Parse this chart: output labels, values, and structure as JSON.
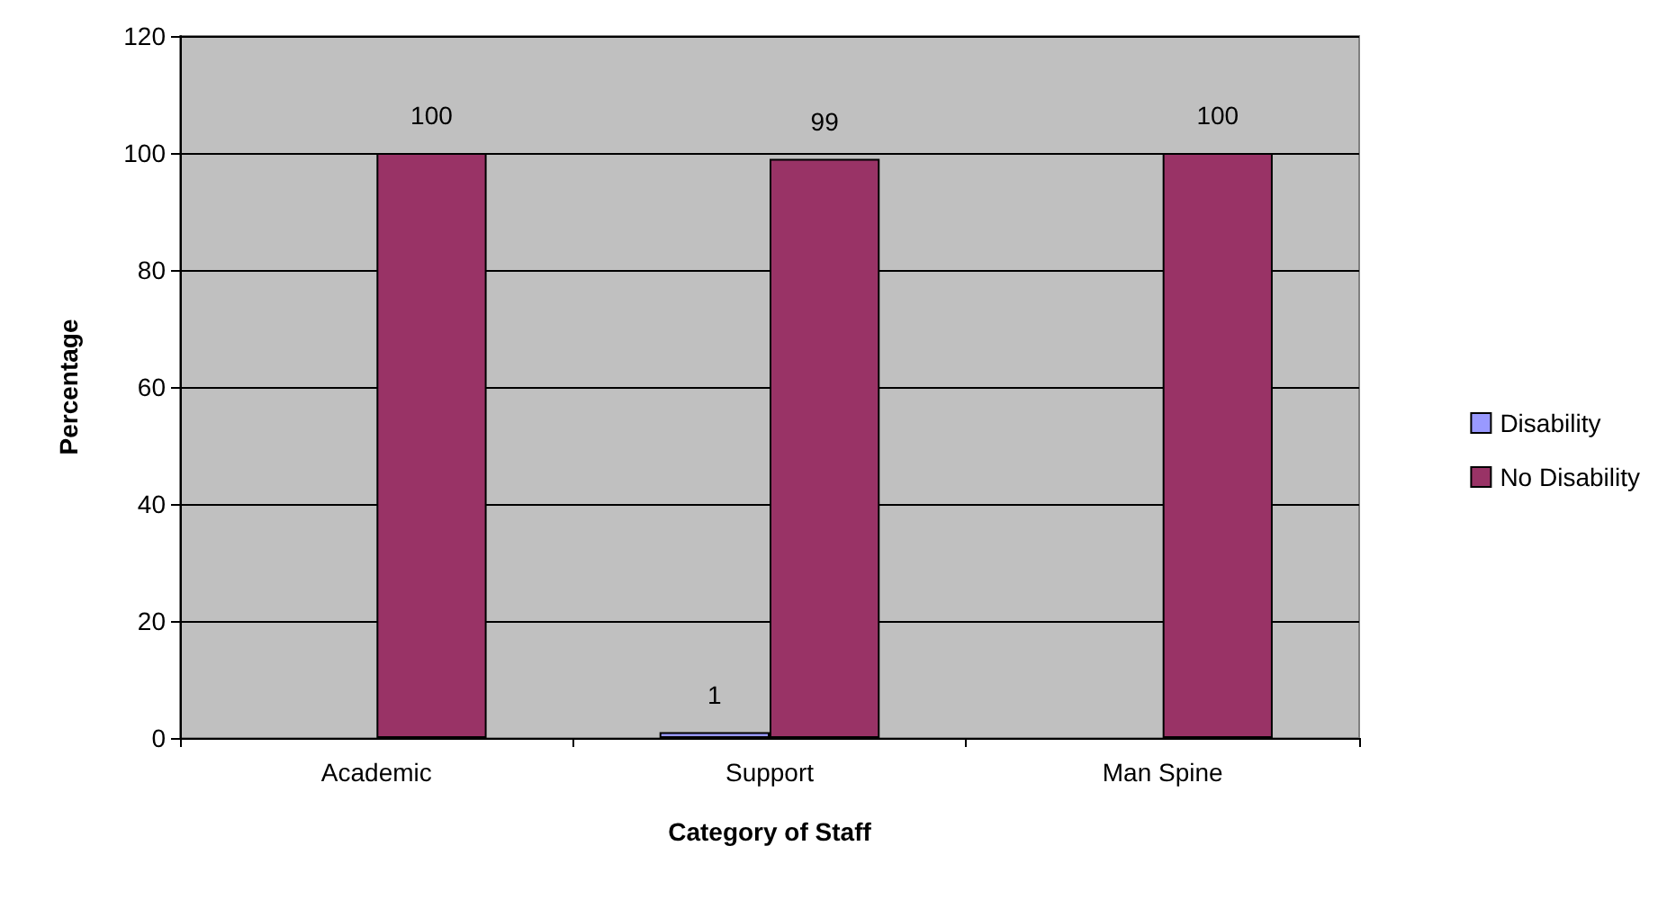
{
  "chart_data": {
    "type": "bar",
    "xlabel": "Category of Staff",
    "ylabel": "Percentage",
    "categories": [
      "Academic",
      "Support",
      "Man Spine"
    ],
    "series": [
      {
        "name": "Disability",
        "color": "#9999ff",
        "values": [
          0,
          1,
          0
        ],
        "value_labels": [
          null,
          "1",
          null
        ]
      },
      {
        "name": "No Disability",
        "color": "#993366",
        "values": [
          100,
          99,
          100
        ],
        "value_labels": [
          "100",
          "99",
          "100"
        ]
      }
    ],
    "ylim": [
      0,
      120
    ],
    "yticks": [
      0,
      20,
      40,
      60,
      80,
      100,
      120
    ],
    "grid": "y",
    "legend": "right"
  }
}
